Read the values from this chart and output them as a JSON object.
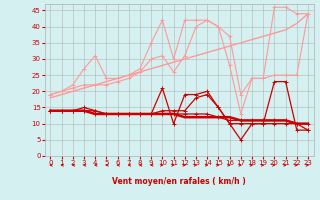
{
  "x": [
    0,
    1,
    2,
    3,
    4,
    5,
    6,
    7,
    8,
    9,
    10,
    11,
    12,
    13,
    14,
    15,
    16,
    17,
    18,
    19,
    20,
    21,
    22,
    23
  ],
  "series": [
    {
      "name": "rafales_light1",
      "color": "#ff9999",
      "lw": 0.8,
      "marker": "+",
      "ms": 3,
      "y": [
        19,
        20,
        22,
        27,
        31,
        24,
        24,
        25,
        27,
        35,
        42,
        30,
        42,
        42,
        42,
        40,
        28,
        13,
        24,
        24,
        46,
        46,
        44,
        44
      ]
    },
    {
      "name": "rafales_light2",
      "color": "#ff9999",
      "lw": 0.8,
      "marker": "+",
      "ms": 3,
      "y": [
        19,
        20,
        21,
        22,
        22,
        22,
        23,
        24,
        26,
        30,
        31,
        26,
        31,
        40,
        42,
        40,
        37,
        19,
        24,
        24,
        25,
        25,
        25,
        44
      ]
    },
    {
      "name": "trend_light",
      "color": "#ff9999",
      "lw": 1.0,
      "marker": null,
      "ms": 0,
      "y": [
        18,
        19,
        20,
        21,
        22,
        23,
        24,
        25,
        26,
        27,
        28,
        29,
        30,
        31,
        32,
        33,
        34,
        35,
        36,
        37,
        38,
        39,
        41,
        44
      ]
    },
    {
      "name": "vent_moyen1",
      "color": "#cc0000",
      "lw": 0.9,
      "marker": "+",
      "ms": 3,
      "y": [
        14,
        14,
        14,
        15,
        14,
        13,
        13,
        13,
        13,
        13,
        21,
        10,
        19,
        19,
        20,
        15,
        10,
        5,
        10,
        10,
        23,
        23,
        8,
        8
      ]
    },
    {
      "name": "vent_moyen2",
      "color": "#cc0000",
      "lw": 0.9,
      "marker": "+",
      "ms": 3,
      "y": [
        14,
        14,
        14,
        14,
        14,
        13,
        13,
        13,
        13,
        13,
        14,
        14,
        14,
        18,
        19,
        15,
        10,
        10,
        10,
        10,
        10,
        10,
        10,
        8
      ]
    },
    {
      "name": "vent_moyen3",
      "color": "#cc0000",
      "lw": 0.9,
      "marker": "+",
      "ms": 3,
      "y": [
        14,
        14,
        14,
        14,
        13,
        13,
        13,
        13,
        13,
        13,
        13,
        13,
        13,
        13,
        13,
        12,
        11,
        11,
        11,
        11,
        11,
        11,
        10,
        10
      ]
    },
    {
      "name": "trend_dark",
      "color": "#cc0000",
      "lw": 1.8,
      "marker": null,
      "ms": 0,
      "y": [
        14,
        14,
        14,
        14,
        13,
        13,
        13,
        13,
        13,
        13,
        13,
        13,
        12,
        12,
        12,
        12,
        12,
        11,
        11,
        11,
        11,
        11,
        10,
        10
      ]
    }
  ],
  "arrows_left": [
    0,
    1,
    2,
    3,
    4,
    5,
    6,
    7,
    8,
    9
  ],
  "arrows_right": [
    10,
    11,
    12,
    13,
    14,
    15,
    16,
    17,
    18,
    19,
    20,
    21,
    22,
    23
  ],
  "xlim": [
    -0.5,
    23.5
  ],
  "ylim": [
    0,
    47
  ],
  "yticks": [
    0,
    5,
    10,
    15,
    20,
    25,
    30,
    35,
    40,
    45
  ],
  "xticks": [
    0,
    1,
    2,
    3,
    4,
    5,
    6,
    7,
    8,
    9,
    10,
    11,
    12,
    13,
    14,
    15,
    16,
    17,
    18,
    19,
    20,
    21,
    22,
    23
  ],
  "xlabel": "Vent moyen/en rafales ( km/h )",
  "bg_color": "#d4f0f0",
  "grid_color": "#b0b0b0",
  "arrow_color": "#cc0000",
  "label_color": "#cc0000"
}
